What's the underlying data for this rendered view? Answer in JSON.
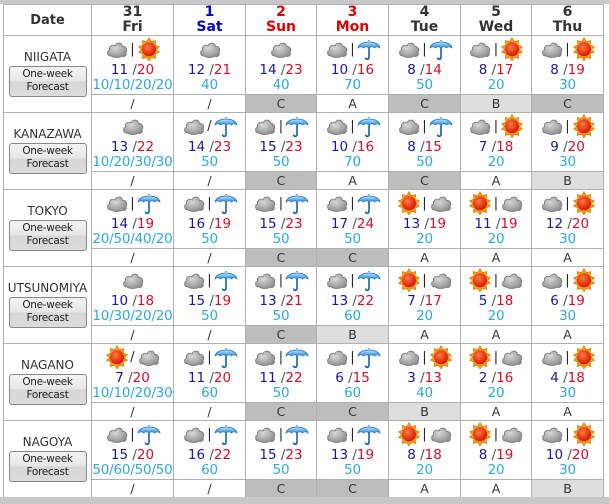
{
  "header": {
    "date_label": "Date",
    "days": [
      {
        "num": "31",
        "dow": "Fri",
        "color": "#333333"
      },
      {
        "num": "1",
        "dow": "Sat",
        "color": "#0000cc"
      },
      {
        "num": "2",
        "dow": "Sun",
        "color": "#dd0000"
      },
      {
        "num": "3",
        "dow": "Mon",
        "color": "#dd0000"
      },
      {
        "num": "4",
        "dow": "Tue",
        "color": "#333333"
      },
      {
        "num": "5",
        "dow": "Wed",
        "color": "#333333"
      },
      {
        "num": "6",
        "dow": "Thu",
        "color": "#333333"
      }
    ]
  },
  "colors": {
    "min_temp": "#1a1a9c",
    "max_temp": "#d2102a",
    "pop": "#33a8dc",
    "reliability_C": "#bdbdbd",
    "reliability_B": "#dedede"
  },
  "cities": [
    {
      "name": "NIIGATA",
      "button": [
        "One-week",
        "Forecast"
      ],
      "days": [
        {
          "icons": [
            "cloud",
            "sun"
          ],
          "sep": "|",
          "min": "11",
          "max": "20",
          "pop": "10/10/20/20",
          "rel": "/"
        },
        {
          "icons": [
            "cloud"
          ],
          "sep": "",
          "min": "12",
          "max": "21",
          "pop": "40",
          "rel": "/"
        },
        {
          "icons": [
            "cloud"
          ],
          "sep": "",
          "min": "14",
          "max": "23",
          "pop": "40",
          "rel": "C"
        },
        {
          "icons": [
            "cloud",
            "umbrella"
          ],
          "sep": "|",
          "min": "10",
          "max": "16",
          "pop": "70",
          "rel": "A"
        },
        {
          "icons": [
            "cloud",
            "umbrella"
          ],
          "sep": "|",
          "min": "8",
          "max": "14",
          "pop": "50",
          "rel": "C"
        },
        {
          "icons": [
            "cloud",
            "sun"
          ],
          "sep": "|",
          "min": "8",
          "max": "17",
          "pop": "20",
          "rel": "B"
        },
        {
          "icons": [
            "cloud",
            "sun"
          ],
          "sep": "|",
          "min": "8",
          "max": "19",
          "pop": "30",
          "rel": "C"
        }
      ]
    },
    {
      "name": "KANAZAWA",
      "button": [
        "One-week",
        "Forecast"
      ],
      "days": [
        {
          "icons": [
            "cloud"
          ],
          "sep": "",
          "min": "13",
          "max": "22",
          "pop": "10/20/30/30",
          "rel": "/"
        },
        {
          "icons": [
            "cloud",
            "umbrella"
          ],
          "sep": "/",
          "min": "14",
          "max": "23",
          "pop": "50",
          "rel": "/"
        },
        {
          "icons": [
            "cloud",
            "umbrella"
          ],
          "sep": "|",
          "min": "15",
          "max": "23",
          "pop": "50",
          "rel": "C"
        },
        {
          "icons": [
            "cloud",
            "umbrella"
          ],
          "sep": "|",
          "min": "10",
          "max": "16",
          "pop": "70",
          "rel": "A"
        },
        {
          "icons": [
            "cloud",
            "umbrella"
          ],
          "sep": "|",
          "min": "8",
          "max": "15",
          "pop": "50",
          "rel": "C"
        },
        {
          "icons": [
            "cloud",
            "sun"
          ],
          "sep": "|",
          "min": "7",
          "max": "18",
          "pop": "20",
          "rel": "A"
        },
        {
          "icons": [
            "cloud",
            "sun"
          ],
          "sep": "|",
          "min": "9",
          "max": "20",
          "pop": "30",
          "rel": "B"
        }
      ]
    },
    {
      "name": "TOKYO",
      "button": [
        "One-week",
        "Forecast"
      ],
      "days": [
        {
          "icons": [
            "cloud",
            "umbrella"
          ],
          "sep": "|",
          "min": "14",
          "max": "19",
          "pop": "20/50/40/20",
          "rel": "/"
        },
        {
          "icons": [
            "cloud",
            "umbrella"
          ],
          "sep": "|",
          "min": "16",
          "max": "19",
          "pop": "50",
          "rel": "/"
        },
        {
          "icons": [
            "cloud",
            "umbrella"
          ],
          "sep": "|",
          "min": "15",
          "max": "23",
          "pop": "50",
          "rel": "C"
        },
        {
          "icons": [
            "cloud",
            "umbrella"
          ],
          "sep": "|",
          "min": "17",
          "max": "24",
          "pop": "50",
          "rel": "C"
        },
        {
          "icons": [
            "sun",
            "cloud"
          ],
          "sep": "|",
          "min": "13",
          "max": "19",
          "pop": "20",
          "rel": "A"
        },
        {
          "icons": [
            "sun",
            "cloud"
          ],
          "sep": "|",
          "min": "11",
          "max": "19",
          "pop": "20",
          "rel": "A"
        },
        {
          "icons": [
            "cloud",
            "sun"
          ],
          "sep": "|",
          "min": "12",
          "max": "20",
          "pop": "30",
          "rel": "A"
        }
      ]
    },
    {
      "name": "UTSUNOMIYA",
      "button": [
        "One-week",
        "Forecast"
      ],
      "days": [
        {
          "icons": [
            "cloud"
          ],
          "sep": "",
          "min": "10",
          "max": "18",
          "pop": "10/30/20/20",
          "rel": "/"
        },
        {
          "icons": [
            "cloud",
            "umbrella"
          ],
          "sep": "|",
          "min": "15",
          "max": "19",
          "pop": "50",
          "rel": "/"
        },
        {
          "icons": [
            "cloud",
            "umbrella"
          ],
          "sep": "|",
          "min": "13",
          "max": "21",
          "pop": "50",
          "rel": "C"
        },
        {
          "icons": [
            "cloud",
            "umbrella"
          ],
          "sep": "|",
          "min": "13",
          "max": "22",
          "pop": "60",
          "rel": "B"
        },
        {
          "icons": [
            "sun",
            "cloud"
          ],
          "sep": "|",
          "min": "7",
          "max": "17",
          "pop": "20",
          "rel": "A"
        },
        {
          "icons": [
            "sun",
            "cloud"
          ],
          "sep": "|",
          "min": "5",
          "max": "18",
          "pop": "20",
          "rel": "A"
        },
        {
          "icons": [
            "cloud",
            "sun"
          ],
          "sep": "|",
          "min": "6",
          "max": "19",
          "pop": "30",
          "rel": "A"
        }
      ]
    },
    {
      "name": "NAGANO",
      "button": [
        "One-week",
        "Forecast"
      ],
      "days": [
        {
          "icons": [
            "sun",
            "cloud"
          ],
          "sep": "/",
          "min": "7",
          "max": "20",
          "pop": "10/10/20/30",
          "rel": "/"
        },
        {
          "icons": [
            "cloud",
            "umbrella"
          ],
          "sep": "|",
          "min": "11",
          "max": "20",
          "pop": "60",
          "rel": "/"
        },
        {
          "icons": [
            "cloud",
            "umbrella"
          ],
          "sep": "|",
          "min": "11",
          "max": "22",
          "pop": "50",
          "rel": "C"
        },
        {
          "icons": [
            "cloud",
            "umbrella"
          ],
          "sep": "|",
          "min": "6",
          "max": "15",
          "pop": "60",
          "rel": "C"
        },
        {
          "icons": [
            "cloud",
            "sun"
          ],
          "sep": "|",
          "min": "3",
          "max": "13",
          "pop": "40",
          "rel": "B"
        },
        {
          "icons": [
            "sun",
            "cloud"
          ],
          "sep": "|",
          "min": "2",
          "max": "16",
          "pop": "20",
          "rel": "A"
        },
        {
          "icons": [
            "cloud",
            "sun"
          ],
          "sep": "|",
          "min": "4",
          "max": "18",
          "pop": "30",
          "rel": "A"
        }
      ]
    },
    {
      "name": "NAGOYA",
      "button": [
        "One-week",
        "Forecast"
      ],
      "days": [
        {
          "icons": [
            "cloud",
            "umbrella"
          ],
          "sep": "|",
          "min": "15",
          "max": "20",
          "pop": "50/60/50/50",
          "rel": "/"
        },
        {
          "icons": [
            "cloud",
            "umbrella"
          ],
          "sep": "|",
          "min": "16",
          "max": "22",
          "pop": "60",
          "rel": "/"
        },
        {
          "icons": [
            "cloud",
            "umbrella"
          ],
          "sep": "|",
          "min": "15",
          "max": "23",
          "pop": "50",
          "rel": "C"
        },
        {
          "icons": [
            "cloud",
            "umbrella"
          ],
          "sep": "|",
          "min": "13",
          "max": "19",
          "pop": "50",
          "rel": "C"
        },
        {
          "icons": [
            "sun",
            "cloud"
          ],
          "sep": "|",
          "min": "8",
          "max": "18",
          "pop": "20",
          "rel": "A"
        },
        {
          "icons": [
            "sun",
            "cloud"
          ],
          "sep": "|",
          "min": "8",
          "max": "19",
          "pop": "20",
          "rel": "A"
        },
        {
          "icons": [
            "cloud",
            "sun"
          ],
          "sep": "|",
          "min": "10",
          "max": "20",
          "pop": "30",
          "rel": "B"
        }
      ]
    }
  ]
}
